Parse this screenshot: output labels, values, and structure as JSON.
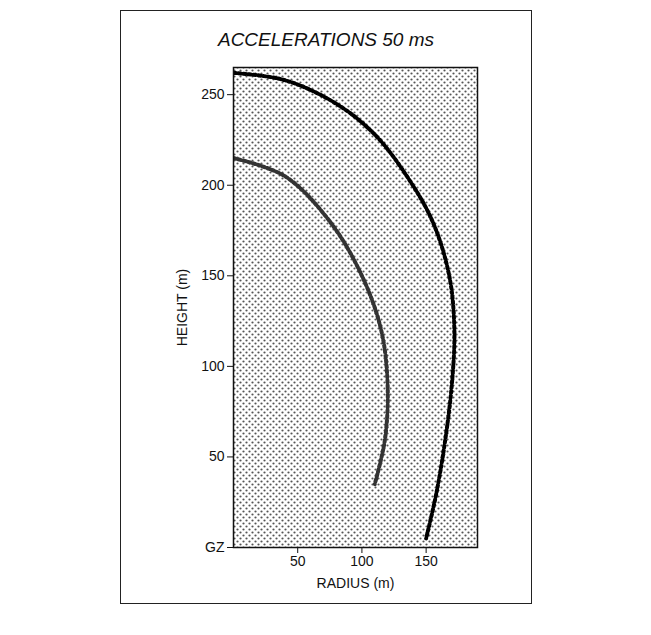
{
  "chart_data": {
    "type": "line",
    "title": "ACCELERATIONS 50 ms",
    "x_label": "RADIUS (m)",
    "y_label": "HEIGHT (m)",
    "xlim": [
      0,
      190
    ],
    "ylim": [
      0,
      265
    ],
    "xticks": [
      50,
      100,
      150
    ],
    "yticks": [
      {
        "value": 0,
        "label": "GZ"
      },
      50,
      100,
      150,
      200,
      250
    ],
    "series": [
      {
        "color": "#000000",
        "line_style": "dotted",
        "x": [
          0,
          40,
          80,
          110,
          135,
          155,
          168,
          172,
          170,
          165,
          158,
          150
        ],
        "values": [
          262,
          258,
          245,
          228,
          205,
          180,
          150,
          120,
          90,
          60,
          30,
          5
        ]
      },
      {
        "color": "#333333",
        "line_style": "dotted",
        "x": [
          0,
          40,
          75,
          100,
          115,
          120,
          118,
          110
        ],
        "values": [
          215,
          205,
          180,
          150,
          120,
          90,
          60,
          35
        ]
      }
    ]
  }
}
